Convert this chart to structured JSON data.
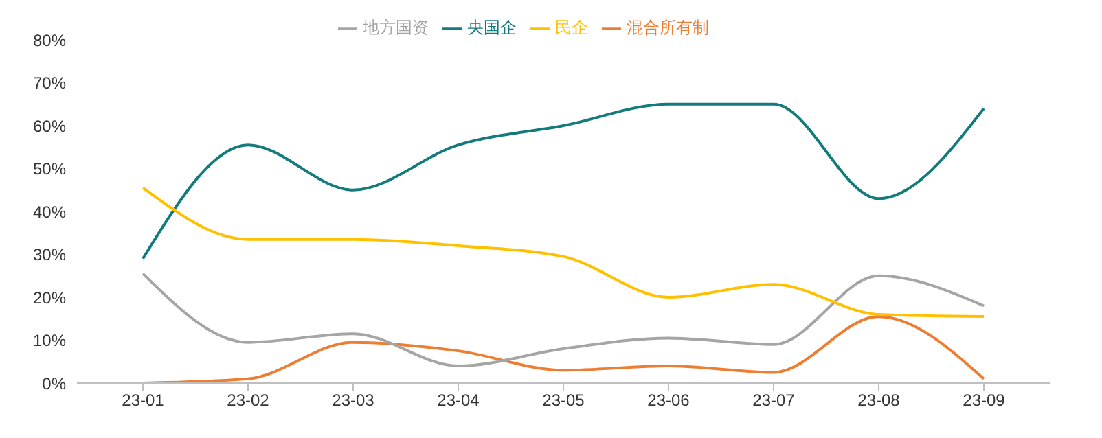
{
  "chart_data": {
    "type": "line",
    "categories": [
      "23-01",
      "23-02",
      "23-03",
      "23-04",
      "23-05",
      "23-06",
      "23-07",
      "23-08",
      "23-09"
    ],
    "series": [
      {
        "name": "央国企",
        "color": "#137b7c",
        "values": [
          29,
          55.5,
          45,
          55.5,
          60,
          65,
          65,
          43,
          64
        ]
      },
      {
        "name": "混合所有制",
        "color": "#ed7d31",
        "values": [
          0,
          1,
          9.5,
          7.5,
          3,
          4,
          2.5,
          15.5,
          1
        ]
      },
      {
        "name": "地方国资",
        "color": "#a5a5a5",
        "values": [
          25.5,
          9.5,
          11.5,
          4,
          8,
          10.5,
          9,
          25,
          18
        ]
      },
      {
        "name": "民企",
        "color": "#ffc000",
        "values": [
          45.5,
          33.5,
          33.5,
          32,
          29.5,
          20,
          23,
          16,
          15.5
        ]
      }
    ],
    "ylim": [
      0,
      80
    ],
    "yticks": [
      {
        "value": 0,
        "label": "0%"
      },
      {
        "value": 10,
        "label": "10%"
      },
      {
        "value": 20,
        "label": "20%"
      },
      {
        "value": 30,
        "label": "30%"
      },
      {
        "value": 40,
        "label": "40%"
      },
      {
        "value": 50,
        "label": "50%"
      },
      {
        "value": 60,
        "label": "60%"
      },
      {
        "value": 70,
        "label": "70%"
      },
      {
        "value": 80,
        "label": "80%"
      }
    ],
    "legend": "top",
    "marker": "none",
    "line_style": "solid"
  }
}
